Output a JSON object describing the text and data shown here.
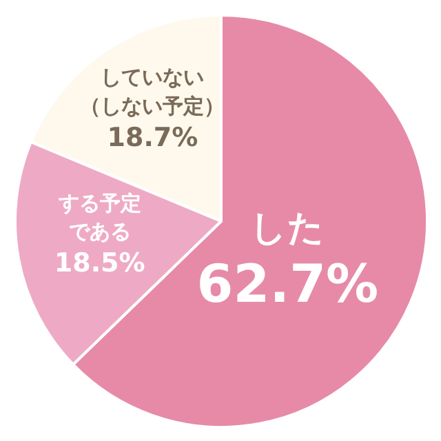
{
  "chart_data": {
    "type": "pie",
    "categories": [
      "した",
      "する予定である",
      "していない（しない予定）"
    ],
    "values": [
      62.7,
      18.5,
      18.7
    ],
    "value_labels": [
      "62.7%",
      "18.5%",
      "18.7%"
    ],
    "colors": [
      "#e68aa8",
      "#eeaac4",
      "#fef9ec"
    ]
  }
}
